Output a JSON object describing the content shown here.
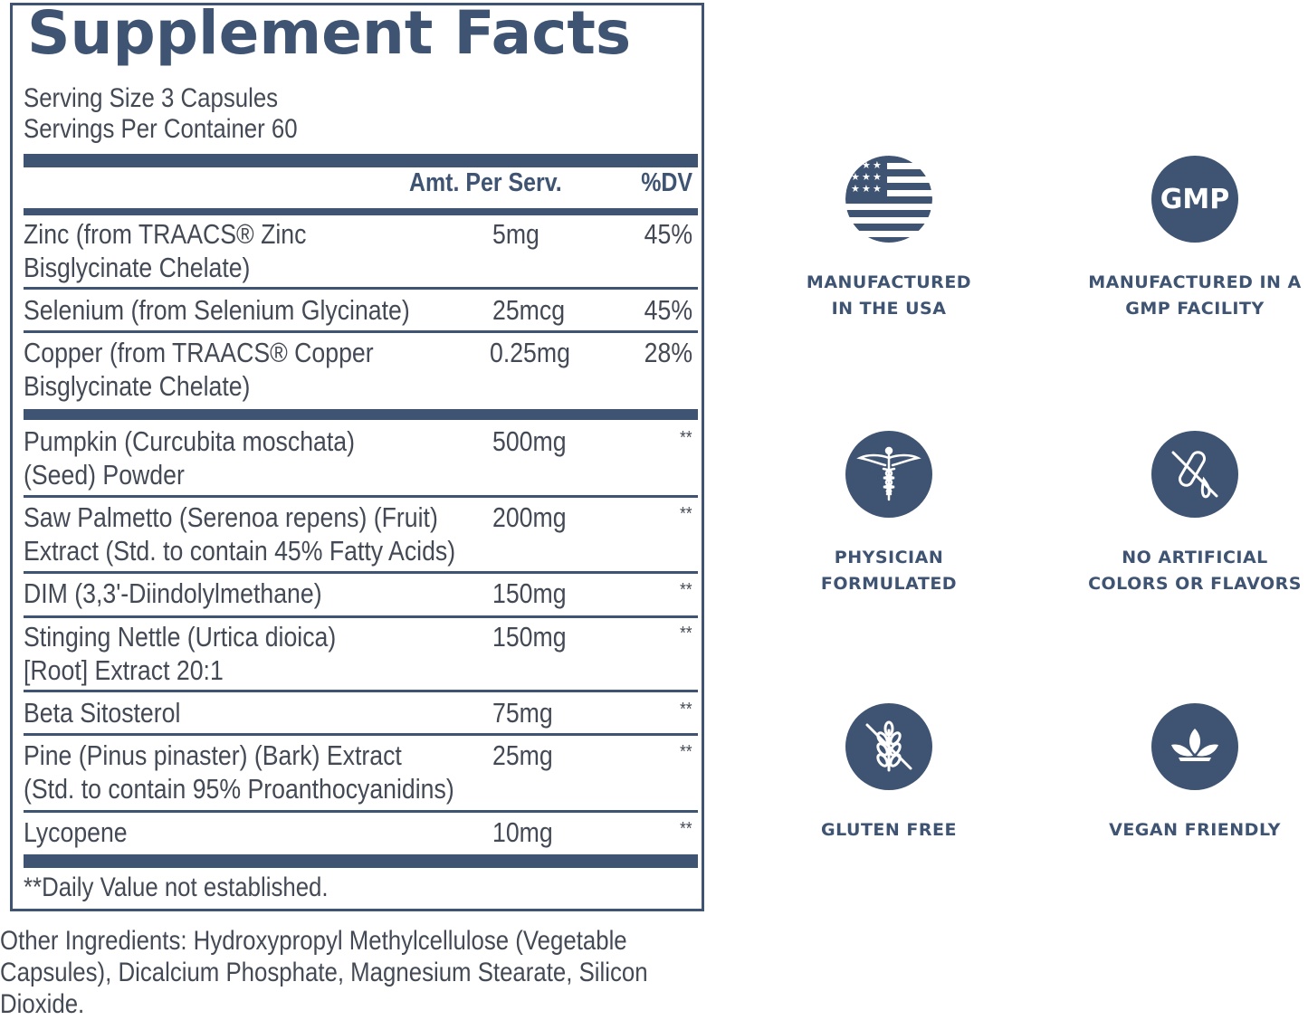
{
  "panel": {
    "title": "Supplement Facts",
    "serving_size": "Serving Size 3 Capsules",
    "servings_per_container": "Servings Per Container 60",
    "col_amount": "Amt. Per Serv.",
    "col_dv": "%DV",
    "rows": [
      {
        "name_lines": [
          "Zinc (from TRAACS® Zinc",
          "Bisglycinate Chelate)"
        ],
        "amount": "5mg",
        "dv": "45%"
      },
      {
        "name_lines": [
          "Selenium (from Selenium Glycinate)"
        ],
        "amount": "25mcg",
        "dv": "45%"
      },
      {
        "name_lines": [
          "Copper (from TRAACS® Copper",
          "Bisglycinate Chelate)"
        ],
        "amount": "0.25mg",
        "dv": "28%"
      },
      {
        "name_lines": [
          "Pumpkin (Curcubita moschata)",
          "(Seed) Powder"
        ],
        "amount": "500mg",
        "dv": "**"
      },
      {
        "name_lines": [
          "Saw Palmetto (Serenoa repens) (Fruit)",
          "Extract (Std. to contain 45% Fatty Acids)"
        ],
        "amount": "200mg",
        "dv": "**"
      },
      {
        "name_lines": [
          "DIM (3,3'-Diindolylmethane)"
        ],
        "amount": "150mg",
        "dv": "**"
      },
      {
        "name_lines": [
          "Stinging Nettle (Urtica dioica)",
          "[Root] Extract 20:1"
        ],
        "amount": "150mg",
        "dv": "**"
      },
      {
        "name_lines": [
          "Beta Sitosterol"
        ],
        "amount": "75mg",
        "dv": "**"
      },
      {
        "name_lines": [
          "Pine (Pinus pinaster) (Bark) Extract",
          "(Std. to contain 95% Proanthocyanidins)"
        ],
        "amount": "25mg",
        "dv": "**"
      },
      {
        "name_lines": [
          "Lycopene"
        ],
        "amount": "10mg",
        "dv": "**"
      }
    ],
    "footnote": "**Daily Value not established."
  },
  "other_ingredients": "Other Ingredients: Hydroxypropyl Methylcellulose (Vegetable Capsules), Dicalcium Phosphate, Magnesium Stearate, Silicon Dioxide.",
  "badges": [
    {
      "icon": "us-flag-icon",
      "label_lines": [
        "MANUFACTURED",
        "IN THE USA"
      ]
    },
    {
      "icon": "gmp-icon",
      "icon_text": "GMP",
      "label_lines": [
        "MANUFACTURED IN A",
        "GMP FACILITY"
      ]
    },
    {
      "icon": "caduceus-icon",
      "label_lines": [
        "PHYSICIAN",
        "FORMULATED"
      ]
    },
    {
      "icon": "no-artificial-icon",
      "label_lines": [
        "NO ARTIFICIAL",
        "COLORS OR FLAVORS"
      ]
    },
    {
      "icon": "gluten-free-icon",
      "label_lines": [
        "GLUTEN FREE"
      ]
    },
    {
      "icon": "vegan-leaf-icon",
      "label_lines": [
        "VEGAN FRIENDLY"
      ]
    }
  ],
  "colors": {
    "brand": "#3f5472",
    "text": "#444a55",
    "background": "#ffffff"
  }
}
